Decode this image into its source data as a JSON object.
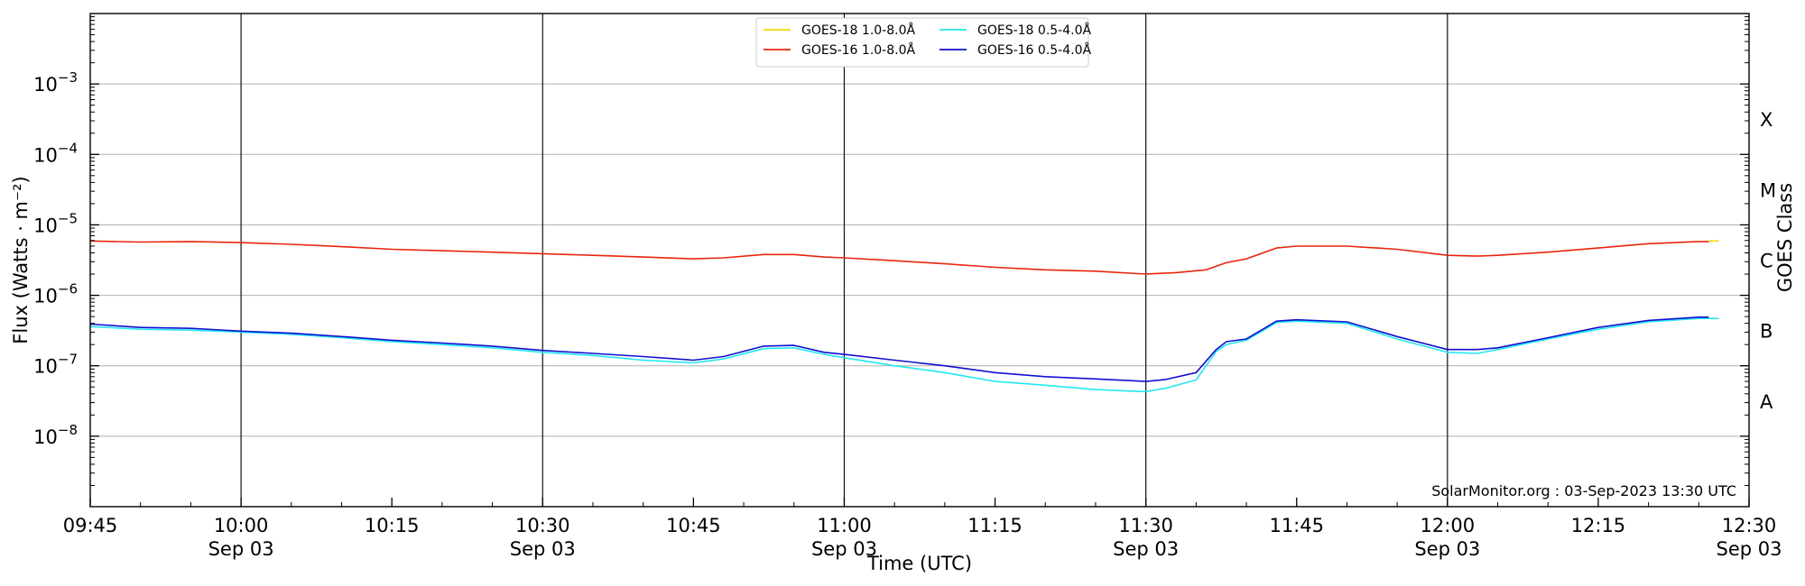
{
  "chart_data": {
    "type": "line",
    "title": "",
    "xlabel": "Time (UTC)",
    "ylabel": "Flux (Watts · m⁻²)",
    "y2label": "GOES Class",
    "yscale": "log",
    "xlim": [
      "09:45",
      "12:30"
    ],
    "ylim": [
      1e-09,
      0.01
    ],
    "grid": "horizontal at decades",
    "legend_position": "top-center",
    "credit": "SolarMonitor.org : 03-Sep-2023 13:30 UTC",
    "x_ticks": [
      {
        "time": "09:45",
        "label": "09:45",
        "sublabel": ""
      },
      {
        "time": "10:00",
        "label": "10:00",
        "sublabel": "Sep 03"
      },
      {
        "time": "10:15",
        "label": "10:15",
        "sublabel": ""
      },
      {
        "time": "10:30",
        "label": "10:30",
        "sublabel": "Sep 03"
      },
      {
        "time": "10:45",
        "label": "10:45",
        "sublabel": ""
      },
      {
        "time": "11:00",
        "label": "11:00",
        "sublabel": "Sep 03"
      },
      {
        "time": "11:15",
        "label": "11:15",
        "sublabel": ""
      },
      {
        "time": "11:30",
        "label": "11:30",
        "sublabel": "Sep 03"
      },
      {
        "time": "11:45",
        "label": "11:45",
        "sublabel": ""
      },
      {
        "time": "12:00",
        "label": "12:00",
        "sublabel": "Sep 03"
      },
      {
        "time": "12:15",
        "label": "12:15",
        "sublabel": ""
      },
      {
        "time": "12:30",
        "label": "12:30",
        "sublabel": "Sep 03"
      }
    ],
    "vertical_lines": [
      "10:00",
      "10:30",
      "11:00",
      "11:30",
      "12:00"
    ],
    "y_ticks": [
      {
        "value": 0.001,
        "base": "10",
        "exp": "−3"
      },
      {
        "value": 0.0001,
        "base": "10",
        "exp": "−4"
      },
      {
        "value": 1e-05,
        "base": "10",
        "exp": "−5"
      },
      {
        "value": 1e-06,
        "base": "10",
        "exp": "−6"
      },
      {
        "value": 1e-07,
        "base": "10",
        "exp": "−7"
      },
      {
        "value": 1e-08,
        "base": "10",
        "exp": "−8"
      }
    ],
    "goes_classes": [
      {
        "label": "X",
        "value": 0.000316
      },
      {
        "label": "M",
        "value": 3.16e-05
      },
      {
        "label": "C",
        "value": 3.16e-06
      },
      {
        "label": "B",
        "value": 3.16e-07
      },
      {
        "label": "A",
        "value": 3.16e-08
      }
    ],
    "series": [
      {
        "name": "GOES-18 1.0-8.0Å",
        "color": "#f5d800",
        "points": [
          [
            "12:26",
            5.9e-06
          ],
          [
            "12:27",
            5.9e-06
          ]
        ]
      },
      {
        "name": "GOES-16 1.0-8.0Å",
        "color": "#e8250c",
        "points": [
          [
            "09:45",
            5.9e-06
          ],
          [
            "09:50",
            5.7e-06
          ],
          [
            "09:55",
            5.8e-06
          ],
          [
            "10:00",
            5.6e-06
          ],
          [
            "10:05",
            5.3e-06
          ],
          [
            "10:10",
            4.9e-06
          ],
          [
            "10:15",
            4.5e-06
          ],
          [
            "10:20",
            4.3e-06
          ],
          [
            "10:25",
            4.1e-06
          ],
          [
            "10:30",
            3.9e-06
          ],
          [
            "10:35",
            3.7e-06
          ],
          [
            "10:40",
            3.5e-06
          ],
          [
            "10:45",
            3.3e-06
          ],
          [
            "10:48",
            3.4e-06
          ],
          [
            "10:52",
            3.8e-06
          ],
          [
            "10:55",
            3.8e-06
          ],
          [
            "10:58",
            3.5e-06
          ],
          [
            "11:00",
            3.4e-06
          ],
          [
            "11:05",
            3.1e-06
          ],
          [
            "11:10",
            2.8e-06
          ],
          [
            "11:15",
            2.5e-06
          ],
          [
            "11:20",
            2.3e-06
          ],
          [
            "11:25",
            2.2e-06
          ],
          [
            "11:30",
            2e-06
          ],
          [
            "11:33",
            2.1e-06
          ],
          [
            "11:36",
            2.3e-06
          ],
          [
            "11:38",
            2.9e-06
          ],
          [
            "11:40",
            3.3e-06
          ],
          [
            "11:43",
            4.7e-06
          ],
          [
            "11:45",
            5e-06
          ],
          [
            "11:50",
            5e-06
          ],
          [
            "11:55",
            4.5e-06
          ],
          [
            "12:00",
            3.7e-06
          ],
          [
            "12:03",
            3.6e-06
          ],
          [
            "12:05",
            3.7e-06
          ],
          [
            "12:10",
            4.1e-06
          ],
          [
            "12:15",
            4.7e-06
          ],
          [
            "12:20",
            5.4e-06
          ],
          [
            "12:25",
            5.8e-06
          ],
          [
            "12:26",
            5.8e-06
          ]
        ]
      },
      {
        "name": "GOES-18 0.5-4.0Å",
        "color": "#22e8f0",
        "points": [
          [
            "09:45",
            3.6e-07
          ],
          [
            "09:50",
            3.3e-07
          ],
          [
            "09:55",
            3.2e-07
          ],
          [
            "10:00",
            3e-07
          ],
          [
            "10:05",
            2.8e-07
          ],
          [
            "10:10",
            2.5e-07
          ],
          [
            "10:15",
            2.2e-07
          ],
          [
            "10:20",
            2e-07
          ],
          [
            "10:25",
            1.8e-07
          ],
          [
            "10:30",
            1.55e-07
          ],
          [
            "10:35",
            1.4e-07
          ],
          [
            "10:40",
            1.2e-07
          ],
          [
            "10:45",
            1.1e-07
          ],
          [
            "10:48",
            1.25e-07
          ],
          [
            "10:52",
            1.75e-07
          ],
          [
            "10:55",
            1.8e-07
          ],
          [
            "10:58",
            1.45e-07
          ],
          [
            "11:00",
            1.3e-07
          ],
          [
            "11:05",
            1e-07
          ],
          [
            "11:10",
            8e-08
          ],
          [
            "11:15",
            6e-08
          ],
          [
            "11:20",
            5.3e-08
          ],
          [
            "11:25",
            4.6e-08
          ],
          [
            "11:28",
            4.4e-08
          ],
          [
            "11:30",
            4.3e-08
          ],
          [
            "11:32",
            4.8e-08
          ],
          [
            "11:35",
            6.3e-08
          ],
          [
            "11:37",
            1.6e-07
          ],
          [
            "11:38",
            2e-07
          ],
          [
            "11:40",
            2.3e-07
          ],
          [
            "11:43",
            4.1e-07
          ],
          [
            "11:45",
            4.3e-07
          ],
          [
            "11:50",
            4e-07
          ],
          [
            "11:55",
            2.4e-07
          ],
          [
            "12:00",
            1.55e-07
          ],
          [
            "12:03",
            1.5e-07
          ],
          [
            "12:05",
            1.7e-07
          ],
          [
            "12:10",
            2.4e-07
          ],
          [
            "12:15",
            3.3e-07
          ],
          [
            "12:20",
            4.2e-07
          ],
          [
            "12:25",
            4.7e-07
          ],
          [
            "12:27",
            4.7e-07
          ]
        ]
      },
      {
        "name": "GOES-16 0.5-4.0Å",
        "color": "#1010d0",
        "points": [
          [
            "09:45",
            3.9e-07
          ],
          [
            "09:50",
            3.5e-07
          ],
          [
            "09:55",
            3.4e-07
          ],
          [
            "10:00",
            3.1e-07
          ],
          [
            "10:05",
            2.9e-07
          ],
          [
            "10:10",
            2.6e-07
          ],
          [
            "10:15",
            2.3e-07
          ],
          [
            "10:20",
            2.1e-07
          ],
          [
            "10:25",
            1.9e-07
          ],
          [
            "10:30",
            1.65e-07
          ],
          [
            "10:35",
            1.5e-07
          ],
          [
            "10:40",
            1.35e-07
          ],
          [
            "10:45",
            1.2e-07
          ],
          [
            "10:48",
            1.35e-07
          ],
          [
            "10:52",
            1.9e-07
          ],
          [
            "10:55",
            1.95e-07
          ],
          [
            "10:58",
            1.55e-07
          ],
          [
            "11:00",
            1.45e-07
          ],
          [
            "11:05",
            1.2e-07
          ],
          [
            "11:10",
            1e-07
          ],
          [
            "11:15",
            8e-08
          ],
          [
            "11:20",
            7e-08
          ],
          [
            "11:25",
            6.5e-08
          ],
          [
            "11:28",
            6.2e-08
          ],
          [
            "11:30",
            6e-08
          ],
          [
            "11:32",
            6.4e-08
          ],
          [
            "11:35",
            8e-08
          ],
          [
            "11:37",
            1.7e-07
          ],
          [
            "11:38",
            2.2e-07
          ],
          [
            "11:40",
            2.4e-07
          ],
          [
            "11:43",
            4.3e-07
          ],
          [
            "11:45",
            4.5e-07
          ],
          [
            "11:50",
            4.2e-07
          ],
          [
            "11:55",
            2.6e-07
          ],
          [
            "12:00",
            1.7e-07
          ],
          [
            "12:03",
            1.7e-07
          ],
          [
            "12:05",
            1.8e-07
          ],
          [
            "12:10",
            2.5e-07
          ],
          [
            "12:15",
            3.5e-07
          ],
          [
            "12:20",
            4.4e-07
          ],
          [
            "12:25",
            4.9e-07
          ],
          [
            "12:26",
            4.9e-07
          ]
        ]
      }
    ]
  }
}
